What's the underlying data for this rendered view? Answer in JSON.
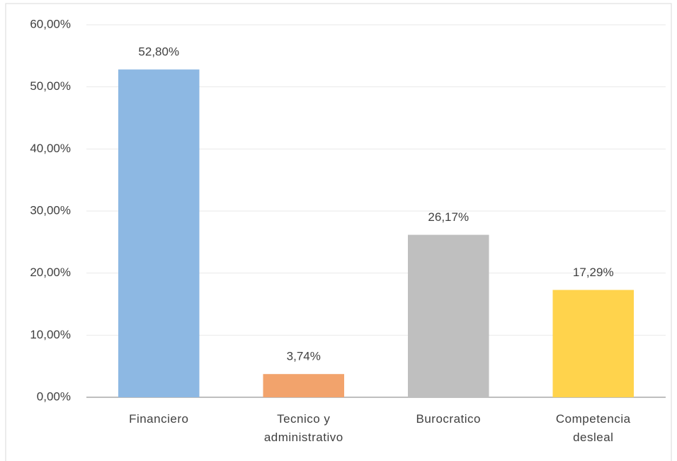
{
  "chart_data": {
    "type": "bar",
    "categories": [
      "Financiero",
      "Tecnico y administrativo",
      "Burocratico",
      "Competencia desleal"
    ],
    "values": [
      52.8,
      3.74,
      26.17,
      17.29
    ],
    "value_labels": [
      "52,80%",
      "3,74%",
      "26,17%",
      "17,29%"
    ],
    "colors": [
      "#8db8e3",
      "#f2a36c",
      "#bfbfbf",
      "#ffd34c"
    ],
    "ylim": [
      0,
      60
    ],
    "yticks": [
      {
        "value": 0,
        "label": "0,00%"
      },
      {
        "value": 10,
        "label": "10,00%"
      },
      {
        "value": 20,
        "label": "20,00%"
      },
      {
        "value": 30,
        "label": "30,00%"
      },
      {
        "value": 40,
        "label": "40,00%"
      },
      {
        "value": 50,
        "label": "50,00%"
      },
      {
        "value": 60,
        "label": "60,00%"
      }
    ],
    "grid": true
  }
}
